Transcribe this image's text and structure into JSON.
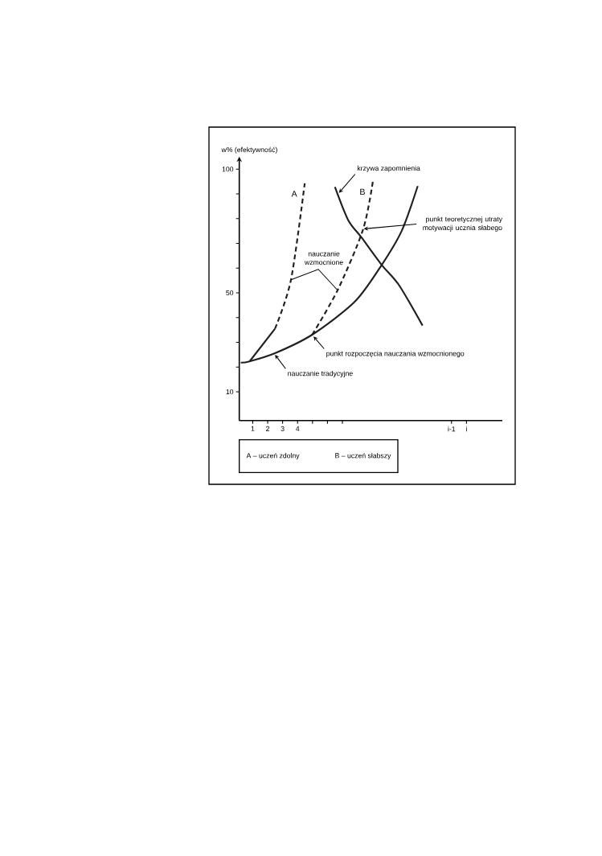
{
  "chart_data": {
    "type": "line",
    "ylabel": "w% (efektywność)",
    "xlim": [
      0.1,
      17.7
    ],
    "ylim": [
      -1.6,
      104
    ],
    "marker": "none",
    "xticks": [
      {
        "value": 1,
        "label": "1"
      },
      {
        "value": 2,
        "label": "2"
      },
      {
        "value": 3,
        "label": "3"
      },
      {
        "value": 4,
        "label": "4"
      },
      {
        "value": 5,
        "label": null
      },
      {
        "value": 6,
        "label": null
      },
      {
        "value": 7,
        "label": null
      },
      {
        "value": 14.3,
        "label": "i-1"
      },
      {
        "value": 15.3,
        "label": "i"
      }
    ],
    "yticks": [
      10,
      {
        "value": 20,
        "label": null
      },
      {
        "value": 30,
        "label": null
      },
      {
        "value": 40,
        "label": null
      },
      50,
      {
        "value": 60,
        "label": null
      },
      {
        "value": 70,
        "label": null
      },
      {
        "value": 80,
        "label": null
      },
      {
        "value": 90,
        "label": null
      },
      100
    ],
    "series": [
      {
        "color": "#231f20",
        "line_style": "solid",
        "x": [
          0.2,
          0.79,
          2.49,
          4.98,
          7.84,
          9.63,
          10.97,
          12.04
        ],
        "values": [
          21.8,
          22.3,
          25.6,
          33.1,
          46.5,
          61.3,
          75.1,
          93.2
        ]
      },
      {
        "color": "#231f20",
        "line_style": "solid",
        "x": [
          6.5,
          7.39,
          8.29,
          9.63,
          10.79,
          12.36
        ],
        "values": [
          92.8,
          79.4,
          72.3,
          61.3,
          53.1,
          36.8
        ]
      },
      {
        "color": "#231f20",
        "line_style": "solid",
        "x": [
          0.79,
          2.49
        ],
        "values": [
          22.3,
          35.5
        ]
      },
      {
        "name": "A",
        "color": "#231f20",
        "line_style": "dashed",
        "x": [
          2.49,
          3.56,
          4.48
        ],
        "values": [
          35.5,
          55.3,
          94.3
        ]
      },
      {
        "name": "B",
        "color": "#231f20",
        "line_style": "dashed",
        "x": [
          4.98,
          6.68,
          8.38,
          9.04
        ],
        "values": [
          33.1,
          51.1,
          75.6,
          95.1
        ]
      }
    ],
    "annotations": [
      {
        "text": "krzywa zapomnienia",
        "x": 6.77,
        "y": 90.4
      },
      {
        "text": "punkt teoretycznej utraty motywacji ucznia słabego",
        "x": 8.43,
        "y": 75.9
      },
      {
        "text": "nauczanie wzmocnione",
        "x": 3.56,
        "y": 55.3
      },
      {
        "text": "punkt rozpoczęcia nauczania wzmocnionego",
        "x": 5.07,
        "y": 32.4
      },
      {
        "text": "nauczanie tradycyjne",
        "x": 2.49,
        "y": 25.0
      },
      "A – uczeń zdolny",
      "B – uczeń słabszy"
    ]
  }
}
